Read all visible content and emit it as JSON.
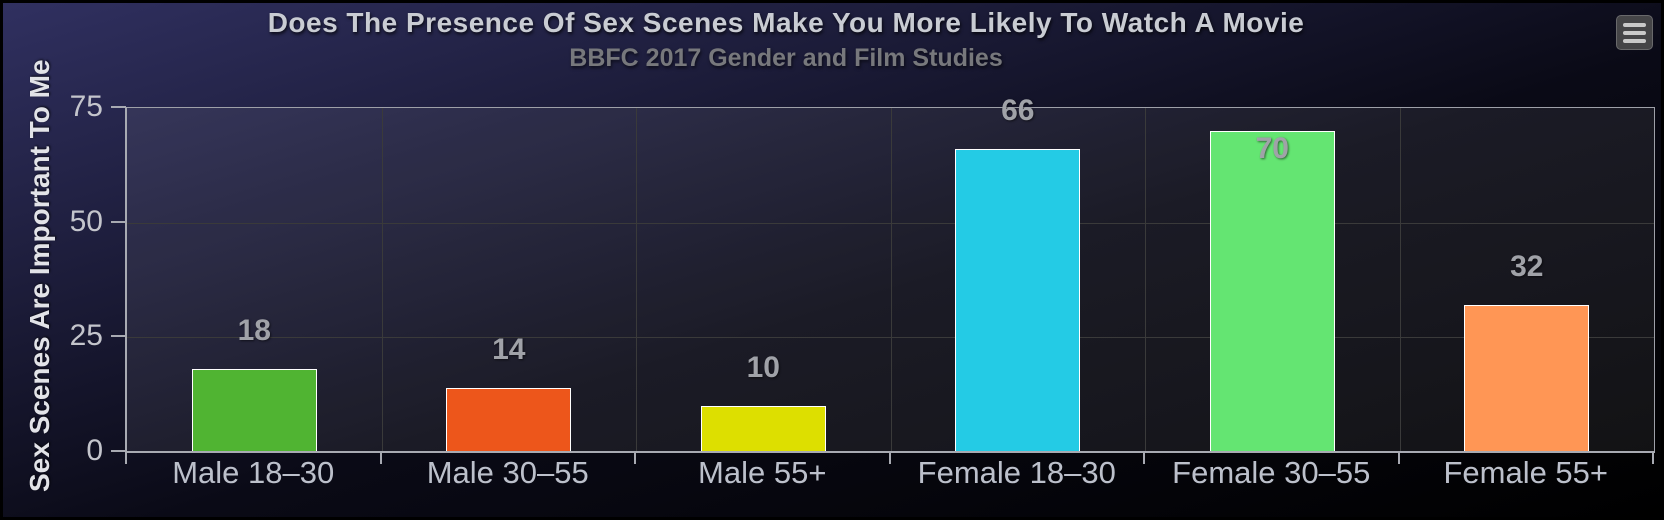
{
  "chart_data": {
    "type": "bar",
    "title": "Does The Presence Of Sex Scenes Make You More Likely To Watch A Movie",
    "subtitle": "BBFC 2017 Gender and Film Studies",
    "categories": [
      "Male 18–30",
      "Male 30–55",
      "Male 55+",
      "Female 18–30",
      "Female 30–55",
      "Female 55+"
    ],
    "values": [
      18,
      14,
      10,
      66,
      70,
      32
    ],
    "bar_colors": [
      "#50B432",
      "#ED561B",
      "#DDDF00",
      "#24CBE5",
      "#64E572",
      "#FF9655"
    ],
    "xlabel": "",
    "ylabel": "Sex Scenes Are Important To Me",
    "yticks": [
      0,
      25,
      50,
      75
    ],
    "ylim": [
      0,
      75
    ],
    "grid": true,
    "legend": "none",
    "data_labels_shown": true
  },
  "toolbar": {
    "menu_icon": "hamburger-icon"
  },
  "colors": {
    "background_gradient_start": "#303060",
    "background_gradient_end": "#000000",
    "plot_background": "rgba(255,255,255,0.07)",
    "plot_border": "#9EA0A8",
    "grid_line": "#3A3A3A",
    "axis_line": "#A8AAB2",
    "title_text": "#C9CCD3",
    "subtitle_text": "#77787C",
    "axis_label_text": "#BCC0CB",
    "y_axis_title_text": "#E2E3E8",
    "data_label_text": "#A0A2A8",
    "bar_border": "#FFFFFF",
    "menu_button_bg": "#454547",
    "menu_button_lines": "#C9C9C9"
  }
}
